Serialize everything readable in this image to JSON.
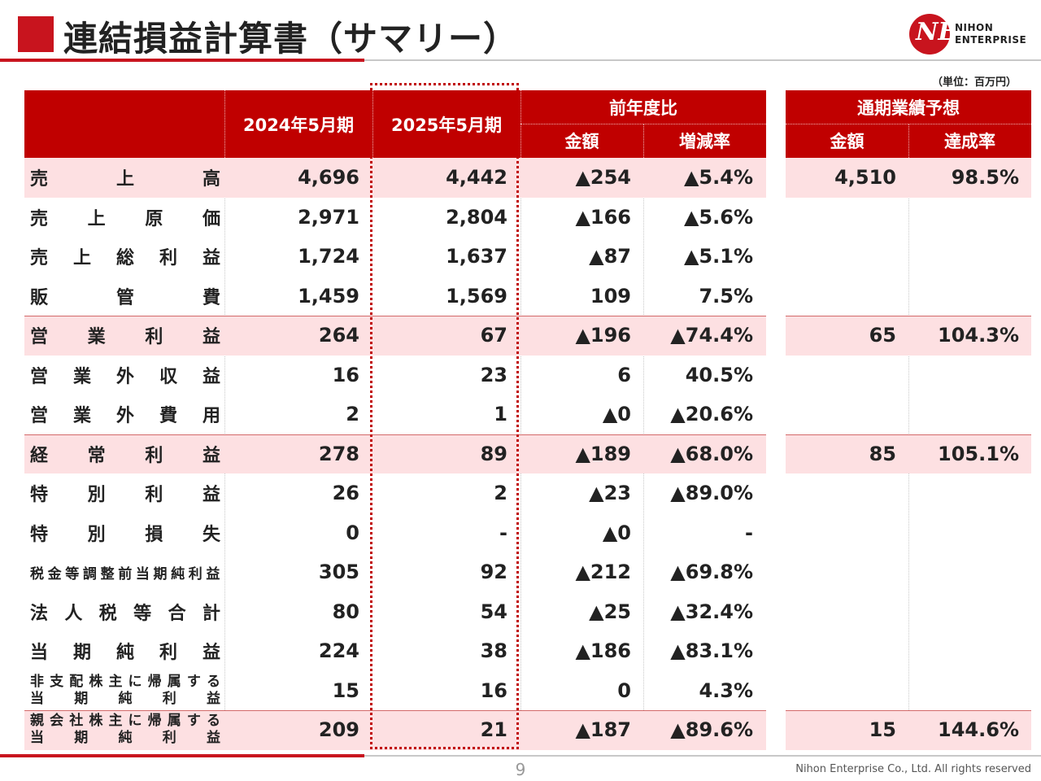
{
  "title": "連結損益計算書（サマリー）",
  "logo": {
    "line1": "NIHON",
    "line2": "ENTERPRISE",
    "mark": "NE",
    "color": "#c8141e"
  },
  "unit": "（単位：百万円）",
  "headers": {
    "fy2024": "2024年5月期",
    "fy2025": "2025年5月期",
    "yoy_group": "前年度比",
    "yoy_amount": "金額",
    "yoy_rate": "増減率",
    "forecast_group": "通期業績予想",
    "forecast_amount": "金額",
    "achievement_rate": "達成率"
  },
  "rows": [
    {
      "label": "売上高",
      "fy2024": "4,696",
      "fy2025": "4,442",
      "diff": "▲254",
      "rate": "▲5.4%",
      "forecast": "4,510",
      "achieve": "98.5%",
      "highlight": true
    },
    {
      "label": "売上原価",
      "fy2024": "2,971",
      "fy2025": "2,804",
      "diff": "▲166",
      "rate": "▲5.6%",
      "forecast": "",
      "achieve": ""
    },
    {
      "label": "売上総利益",
      "fy2024": "1,724",
      "fy2025": "1,637",
      "diff": "▲87",
      "rate": "▲5.1%",
      "forecast": "",
      "achieve": ""
    },
    {
      "label": "販管費",
      "fy2024": "1,459",
      "fy2025": "1,569",
      "diff": "109",
      "rate": "7.5%",
      "forecast": "",
      "achieve": ""
    },
    {
      "label": "営業利益",
      "fy2024": "264",
      "fy2025": "67",
      "diff": "▲196",
      "rate": "▲74.4%",
      "forecast": "65",
      "achieve": "104.3%",
      "highlight": true
    },
    {
      "label": "営業外収益",
      "fy2024": "16",
      "fy2025": "23",
      "diff": "6",
      "rate": "40.5%",
      "forecast": "",
      "achieve": ""
    },
    {
      "label": "営業外費用",
      "fy2024": "2",
      "fy2025": "1",
      "diff": "▲0",
      "rate": "▲20.6%",
      "forecast": "",
      "achieve": ""
    },
    {
      "label": "経常利益",
      "fy2024": "278",
      "fy2025": "89",
      "diff": "▲189",
      "rate": "▲68.0%",
      "forecast": "85",
      "achieve": "105.1%",
      "highlight": true
    },
    {
      "label": "特別利益",
      "fy2024": "26",
      "fy2025": "2",
      "diff": "▲23",
      "rate": "▲89.0%",
      "forecast": "",
      "achieve": ""
    },
    {
      "label": "特別損失",
      "fy2024": "0",
      "fy2025": "-",
      "diff": "▲0",
      "rate": "-",
      "forecast": "",
      "achieve": ""
    },
    {
      "label": "税金等調整前当期純利益",
      "fy2024": "305",
      "fy2025": "92",
      "diff": "▲212",
      "rate": "▲69.8%",
      "forecast": "",
      "achieve": "",
      "small": true
    },
    {
      "label": "法人税等合計",
      "fy2024": "80",
      "fy2025": "54",
      "diff": "▲25",
      "rate": "▲32.4%",
      "forecast": "",
      "achieve": ""
    },
    {
      "label": "当期純利益",
      "fy2024": "224",
      "fy2025": "38",
      "diff": "▲186",
      "rate": "▲83.1%",
      "forecast": "",
      "achieve": ""
    },
    {
      "label_lines": [
        "非支配株主に帰属する",
        "当期純利益"
      ],
      "fy2024": "15",
      "fy2025": "16",
      "diff": "0",
      "rate": "4.3%",
      "forecast": "",
      "achieve": ""
    },
    {
      "label_lines": [
        "親会社株主に帰属する",
        "当期純利益"
      ],
      "fy2024": "209",
      "fy2025": "21",
      "diff": "▲187",
      "rate": "▲89.6%",
      "forecast": "15",
      "achieve": "144.6%",
      "highlight": true
    }
  ],
  "footer": {
    "page": "9",
    "copyright": "Nihon Enterprise Co., Ltd. All rights reserved"
  }
}
